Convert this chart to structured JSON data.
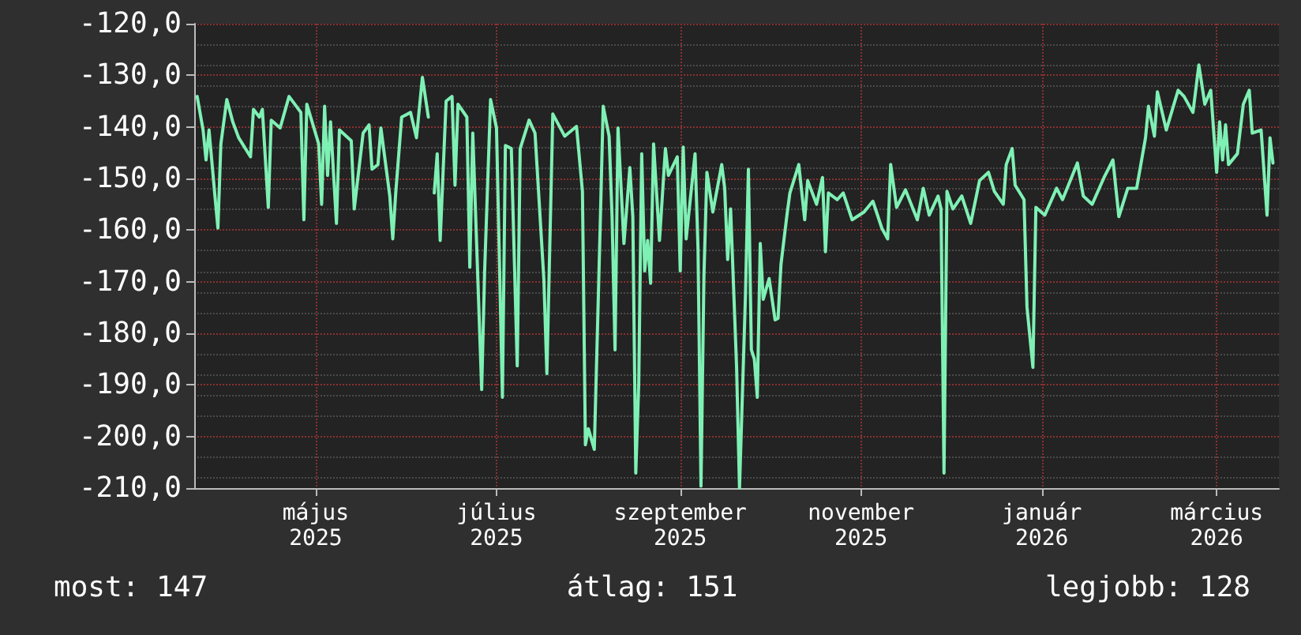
{
  "chart_data": {
    "type": "line",
    "x": [
      "2025-03-22",
      "2025-03-24",
      "2025-03-25",
      "2025-03-26",
      "2025-03-28",
      "2025-03-29",
      "2025-03-30",
      "2025-04-01",
      "2025-04-03",
      "2025-04-05",
      "2025-04-09",
      "2025-04-10",
      "2025-04-12",
      "2025-04-13",
      "2025-04-15",
      "2025-04-16",
      "2025-04-19",
      "2025-04-22",
      "2025-04-26",
      "2025-04-27",
      "2025-04-28",
      "2025-05-02",
      "2025-05-03",
      "2025-05-04",
      "2025-05-05",
      "2025-05-06",
      "2025-05-08",
      "2025-05-09",
      "2025-05-13",
      "2025-05-14",
      "2025-05-17",
      "2025-05-19",
      "2025-05-20",
      "2025-05-22",
      "2025-05-23",
      "2025-05-26",
      "2025-05-27",
      "2025-05-28",
      "2025-05-30",
      "2025-06-02",
      "2025-06-04",
      "2025-06-06",
      "2025-06-08",
      "2025-06-09",
      "2025-06-10",
      "2025-06-11",
      "2025-06-12",
      "2025-06-14",
      "2025-06-16",
      "2025-06-17",
      "2025-06-18",
      "2025-06-21",
      "2025-06-22",
      "2025-06-23",
      "2025-06-26",
      "2025-06-27",
      "2025-06-29",
      "2025-07-01",
      "2025-07-03",
      "2025-07-04",
      "2025-07-06",
      "2025-07-08",
      "2025-07-09",
      "2025-07-12",
      "2025-07-14",
      "2025-07-17",
      "2025-07-18",
      "2025-07-20",
      "2025-07-24",
      "2025-07-28",
      "2025-07-30",
      "2025-07-31",
      "2025-08-01",
      "2025-08-03",
      "2025-08-05",
      "2025-08-06",
      "2025-08-08",
      "2025-08-09",
      "2025-08-10",
      "2025-08-11",
      "2025-08-13",
      "2025-08-15",
      "2025-08-16",
      "2025-08-17",
      "2025-08-18",
      "2025-08-19",
      "2025-08-20",
      "2025-08-21",
      "2025-08-22",
      "2025-08-23",
      "2025-08-25",
      "2025-08-27",
      "2025-08-28",
      "2025-08-31",
      "2025-09-01",
      "2025-09-02",
      "2025-09-03",
      "2025-09-06",
      "2025-09-07",
      "2025-09-08",
      "2025-09-09",
      "2025-09-10",
      "2025-09-12",
      "2025-09-15",
      "2025-09-16",
      "2025-09-17",
      "2025-09-18",
      "2025-09-20",
      "2025-09-21",
      "2025-09-23",
      "2025-09-24",
      "2025-09-25",
      "2025-09-26",
      "2025-09-27",
      "2025-09-28",
      "2025-09-29",
      "2025-10-01",
      "2025-10-03",
      "2025-10-04",
      "2025-10-05",
      "2025-10-07",
      "2025-10-08",
      "2025-10-11",
      "2025-10-13",
      "2025-10-14",
      "2025-10-17",
      "2025-10-19",
      "2025-10-20",
      "2025-10-21",
      "2025-10-24",
      "2025-10-26",
      "2025-10-29",
      "2025-11-02",
      "2025-11-05",
      "2025-11-08",
      "2025-11-10",
      "2025-11-11",
      "2025-11-13",
      "2025-11-16",
      "2025-11-20",
      "2025-11-22",
      "2025-11-24",
      "2025-11-27",
      "2025-11-28",
      "2025-11-29",
      "2025-11-30",
      "2025-12-02",
      "2025-12-05",
      "2025-12-08",
      "2025-12-11",
      "2025-12-14",
      "2025-12-16",
      "2025-12-19",
      "2025-12-20",
      "2025-12-22",
      "2025-12-23",
      "2025-12-26",
      "2025-12-27",
      "2025-12-29",
      "2025-12-30",
      "2026-01-02",
      "2026-01-06",
      "2026-01-08",
      "2026-01-13",
      "2026-01-15",
      "2026-01-18",
      "2026-01-22",
      "2026-01-25",
      "2026-01-27",
      "2026-01-30",
      "2026-02-02",
      "2026-02-05",
      "2026-02-06",
      "2026-02-08",
      "2026-02-09",
      "2026-02-12",
      "2026-02-16",
      "2026-02-18",
      "2026-02-21",
      "2026-02-23",
      "2026-02-25",
      "2026-02-27",
      "2026-03-01",
      "2026-03-02",
      "2026-03-03",
      "2026-03-04",
      "2026-03-05",
      "2026-03-08",
      "2026-03-10",
      "2026-03-12",
      "2026-03-13",
      "2026-03-16",
      "2026-03-18",
      "2026-03-19",
      "2026-03-20"
    ],
    "series": [
      {
        "color": "#7ff0b4",
        "values": [
          -134.1,
          -140.6,
          -146.4,
          -140.6,
          -153.4,
          -159.6,
          -143.3,
          -134.7,
          -139,
          -142.1,
          -145.8,
          -136.6,
          -138.1,
          -136.6,
          -155.6,
          -138.7,
          -140.2,
          -134.1,
          -137.2,
          -158,
          -135.6,
          -143.3,
          -155,
          -136,
          -149.4,
          -139,
          -158.7,
          -140.6,
          -142.7,
          -155.9,
          -141.2,
          -139.6,
          -148.2,
          -147.3,
          -140.2,
          -153.4,
          -161.7,
          -152.8,
          -138.1,
          -137.2,
          -142.1,
          -130.4,
          -138.1,
          null,
          -152.8,
          -145.2,
          -162,
          -135,
          -134.1,
          -151.3,
          -135.6,
          -138.1,
          -167.2,
          -141.2,
          -190.9,
          -167.9,
          -134.7,
          -140.2,
          -192.4,
          -143.6,
          -144.2,
          -186.3,
          -144.2,
          -138.7,
          -141.2,
          -169.7,
          -187.8,
          -137.5,
          -141.8,
          -139.9,
          -152.5,
          -201.6,
          -198.5,
          -202.5,
          -159,
          -136,
          -141.8,
          -157.4,
          -183.2,
          -140.2,
          -162.6,
          -147.9,
          -157.4,
          -207.1,
          -189.6,
          -145.2,
          -167.9,
          -162,
          -170.3,
          -143.3,
          -162,
          -144.2,
          -149.4,
          -145.8,
          -167.9,
          -143.9,
          -161.7,
          -145.2,
          -163.6,
          -209.6,
          -168.8,
          -148.8,
          -156.5,
          -147.3,
          -151.9,
          -165.7,
          -155.9,
          -186.3,
          -210,
          -172.8,
          -148.2,
          -183.2,
          -185,
          -192.4,
          -162.6,
          -173.4,
          -169.4,
          -177.4,
          -177.1,
          -166.6,
          -157.1,
          -152.8,
          -147.3,
          -158,
          -150.4,
          -155,
          -149.8,
          -164.2,
          -152.8,
          -154.1,
          -152.8,
          -158,
          -156.5,
          -154.4,
          -159.6,
          -161.7,
          -147.3,
          -155.6,
          -152.2,
          -158,
          -151.9,
          -157.1,
          -153.4,
          -155.9,
          -207.1,
          -152.5,
          -155.9,
          -153.4,
          -158.7,
          -150.4,
          -148.8,
          -152.5,
          -155,
          -147.3,
          -144.2,
          -151.3,
          -154.1,
          -174.9,
          -186.6,
          -155.6,
          -157.1,
          -151.9,
          -154.1,
          -147,
          -153.4,
          -155,
          -149.8,
          -146.4,
          -157.4,
          -151.9,
          -151.9,
          -142.1,
          -136,
          -141.8,
          -133.2,
          -140.6,
          -132.9,
          -134.1,
          -137.2,
          -128,
          -135.6,
          -132.9,
          -148.8,
          -139,
          -146.4,
          -139.6,
          -147.3,
          -145.2,
          -135.6,
          -132.9,
          -141.2,
          -140.6,
          -157.1,
          -142.1,
          -147
        ]
      }
    ],
    "xlim": [
      "2025-03-21",
      "2026-03-22"
    ],
    "xticks": [
      {
        "value": "2025-05-01",
        "label": "május 2025"
      },
      {
        "value": "2025-07-01",
        "label": "július 2025"
      },
      {
        "value": "2025-09-01",
        "label": "szeptember 2025"
      },
      {
        "value": "2025-11-01",
        "label": "november 2025"
      },
      {
        "value": "2026-01-01",
        "label": "január 2026"
      },
      {
        "value": "2026-03-01",
        "label": "március 2026"
      }
    ],
    "ylim": [
      -210,
      -120
    ],
    "yticks": [
      {
        "value": -210,
        "label": "-210,0"
      },
      {
        "value": -200,
        "label": "-200,0"
      },
      {
        "value": -190,
        "label": "-190,0"
      },
      {
        "value": -180,
        "label": "-180,0"
      },
      {
        "value": -170,
        "label": "-170,0"
      },
      {
        "value": -160,
        "label": "-160,0"
      },
      {
        "value": -150,
        "label": "-150,0"
      },
      {
        "value": -140,
        "label": "-140,0"
      },
      {
        "value": -130,
        "label": "-130,0"
      },
      {
        "value": -120,
        "label": "-120,0"
      }
    ],
    "grid": true,
    "line_style": "solid",
    "annotations": [
      "most: 147",
      "átlag: 151",
      "legjobb: 128"
    ]
  }
}
